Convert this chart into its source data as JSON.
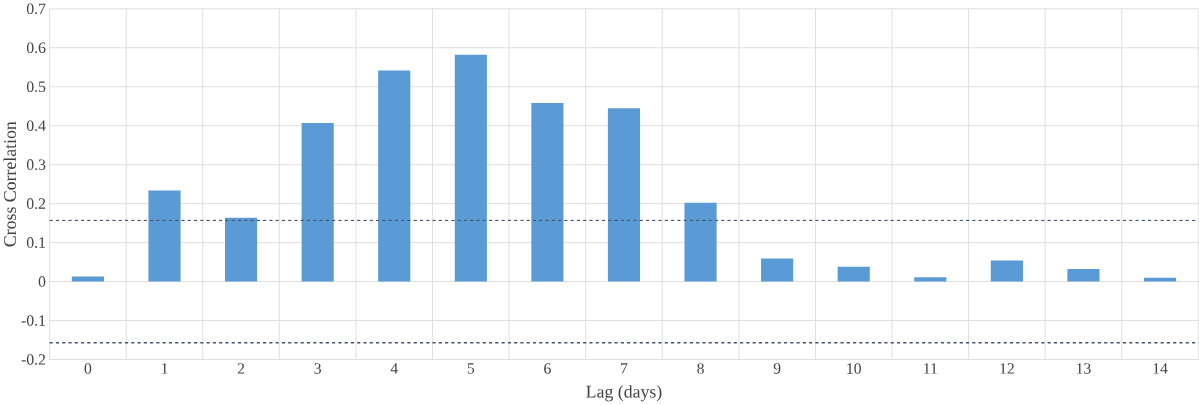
{
  "chart_data": {
    "type": "bar",
    "xlabel": "Lag (days)",
    "ylabel": "Cross Correlation",
    "categories": [
      "0",
      "1",
      "2",
      "3",
      "4",
      "5",
      "6",
      "7",
      "8",
      "9",
      "10",
      "11",
      "12",
      "13",
      "14"
    ],
    "values": [
      0.013,
      0.234,
      0.164,
      0.407,
      0.542,
      0.582,
      0.458,
      0.445,
      0.202,
      0.059,
      0.038,
      0.011,
      0.054,
      0.032,
      0.01
    ],
    "color": "#5b9bd5",
    "ylim": [
      -0.2,
      0.7
    ],
    "yticks": [
      -0.2,
      -0.1,
      0,
      0.1,
      0.2,
      0.3,
      0.4,
      0.5,
      0.6,
      0.7
    ],
    "grid": true,
    "ref_lines": [
      {
        "axis": "y",
        "value": 0.157,
        "color": "#44546a",
        "line_style": "dashed"
      },
      {
        "axis": "y",
        "value": -0.157,
        "color": "#44546a",
        "line_style": "dashed"
      }
    ]
  }
}
